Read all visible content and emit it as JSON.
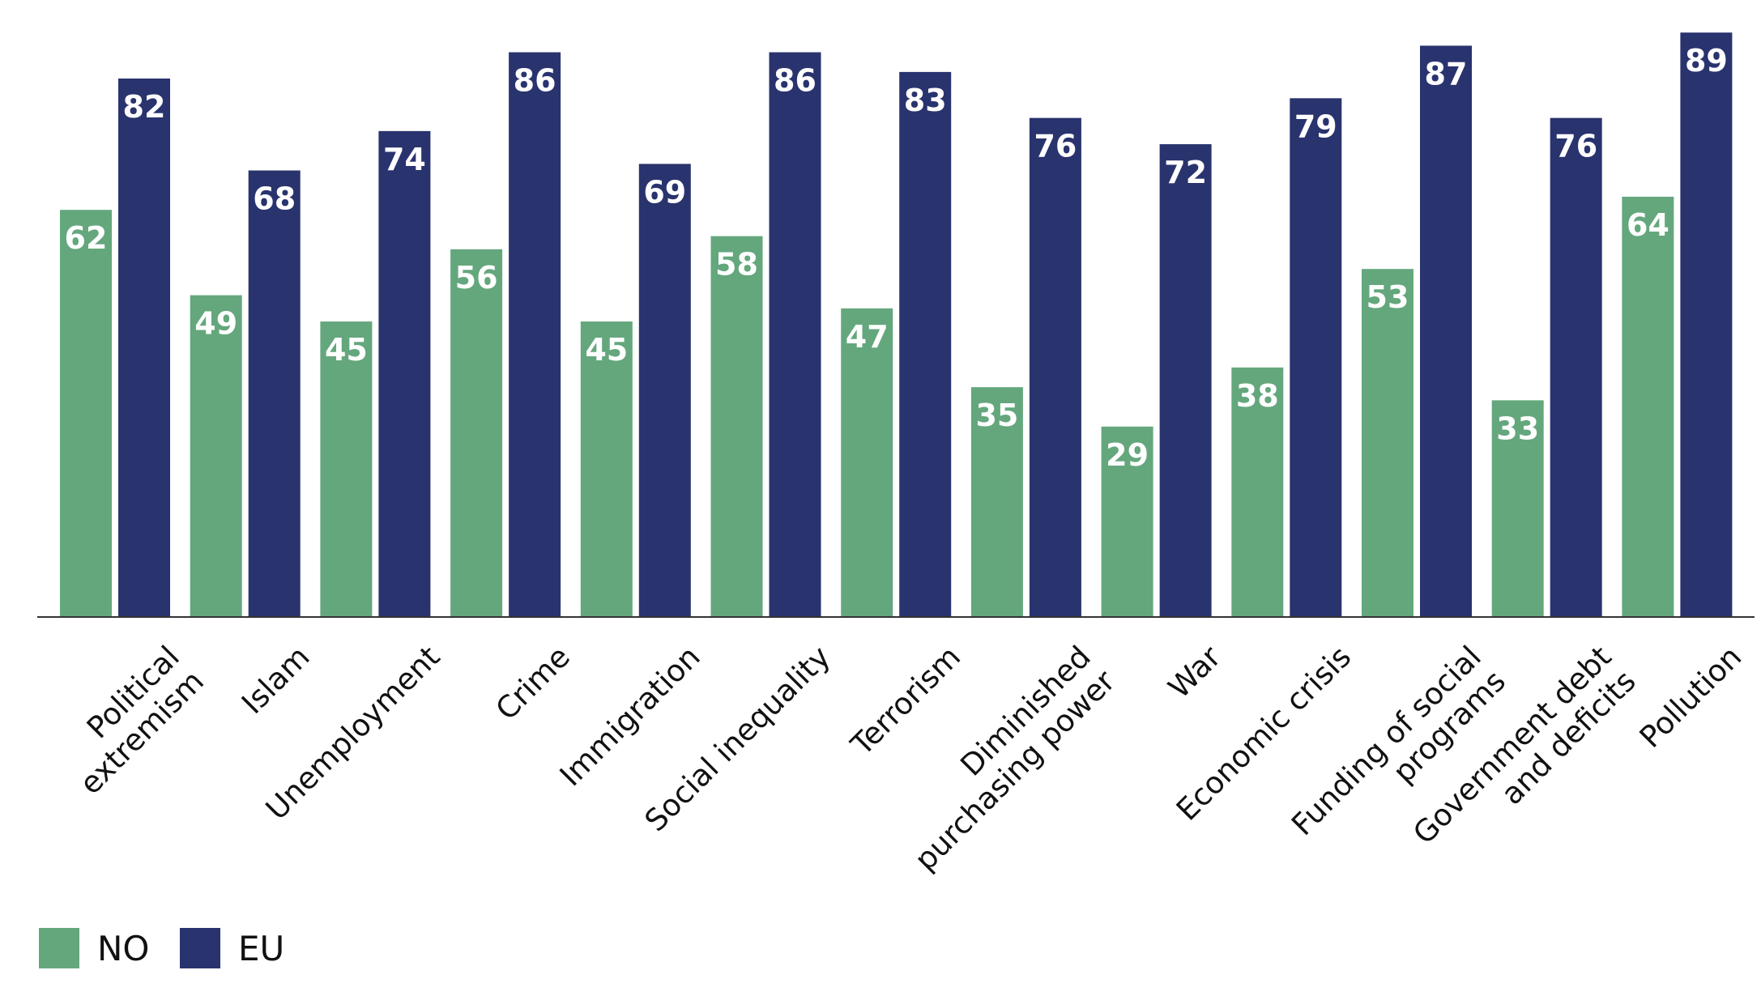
{
  "chart_data": {
    "type": "bar",
    "categories": [
      "Political extremism",
      "Islam",
      "Unemployment",
      "Crime",
      "Immigration",
      "Social inequality",
      "Terrorism",
      "Diminished purchasing power",
      "War",
      "Economic crisis",
      "Funding of social programs",
      "Government debt and deficits",
      "Pollution"
    ],
    "category_lines": [
      [
        "Political",
        "extremism"
      ],
      [
        "Islam"
      ],
      [
        "Unemployment"
      ],
      [
        "Crime"
      ],
      [
        "Immigration"
      ],
      [
        "Social inequality"
      ],
      [
        "Terrorism"
      ],
      [
        "Diminished",
        "purchasing power"
      ],
      [
        "War"
      ],
      [
        "Economic crisis"
      ],
      [
        "Funding of social",
        "programs"
      ],
      [
        "Government debt",
        "and deficits"
      ],
      [
        "Pollution"
      ]
    ],
    "series": [
      {
        "name": "NO",
        "color": "#64a77d",
        "values": [
          62,
          49,
          45,
          56,
          45,
          58,
          47,
          35,
          29,
          38,
          53,
          33,
          64
        ]
      },
      {
        "name": "EU",
        "color": "#29336e",
        "values": [
          82,
          68,
          74,
          86,
          69,
          86,
          83,
          76,
          72,
          79,
          87,
          76,
          89
        ]
      }
    ],
    "ylim": [
      0,
      90
    ],
    "grid": false,
    "data_labels": true,
    "legend_position": "bottom-left",
    "title": "",
    "xlabel": "",
    "ylabel": ""
  }
}
